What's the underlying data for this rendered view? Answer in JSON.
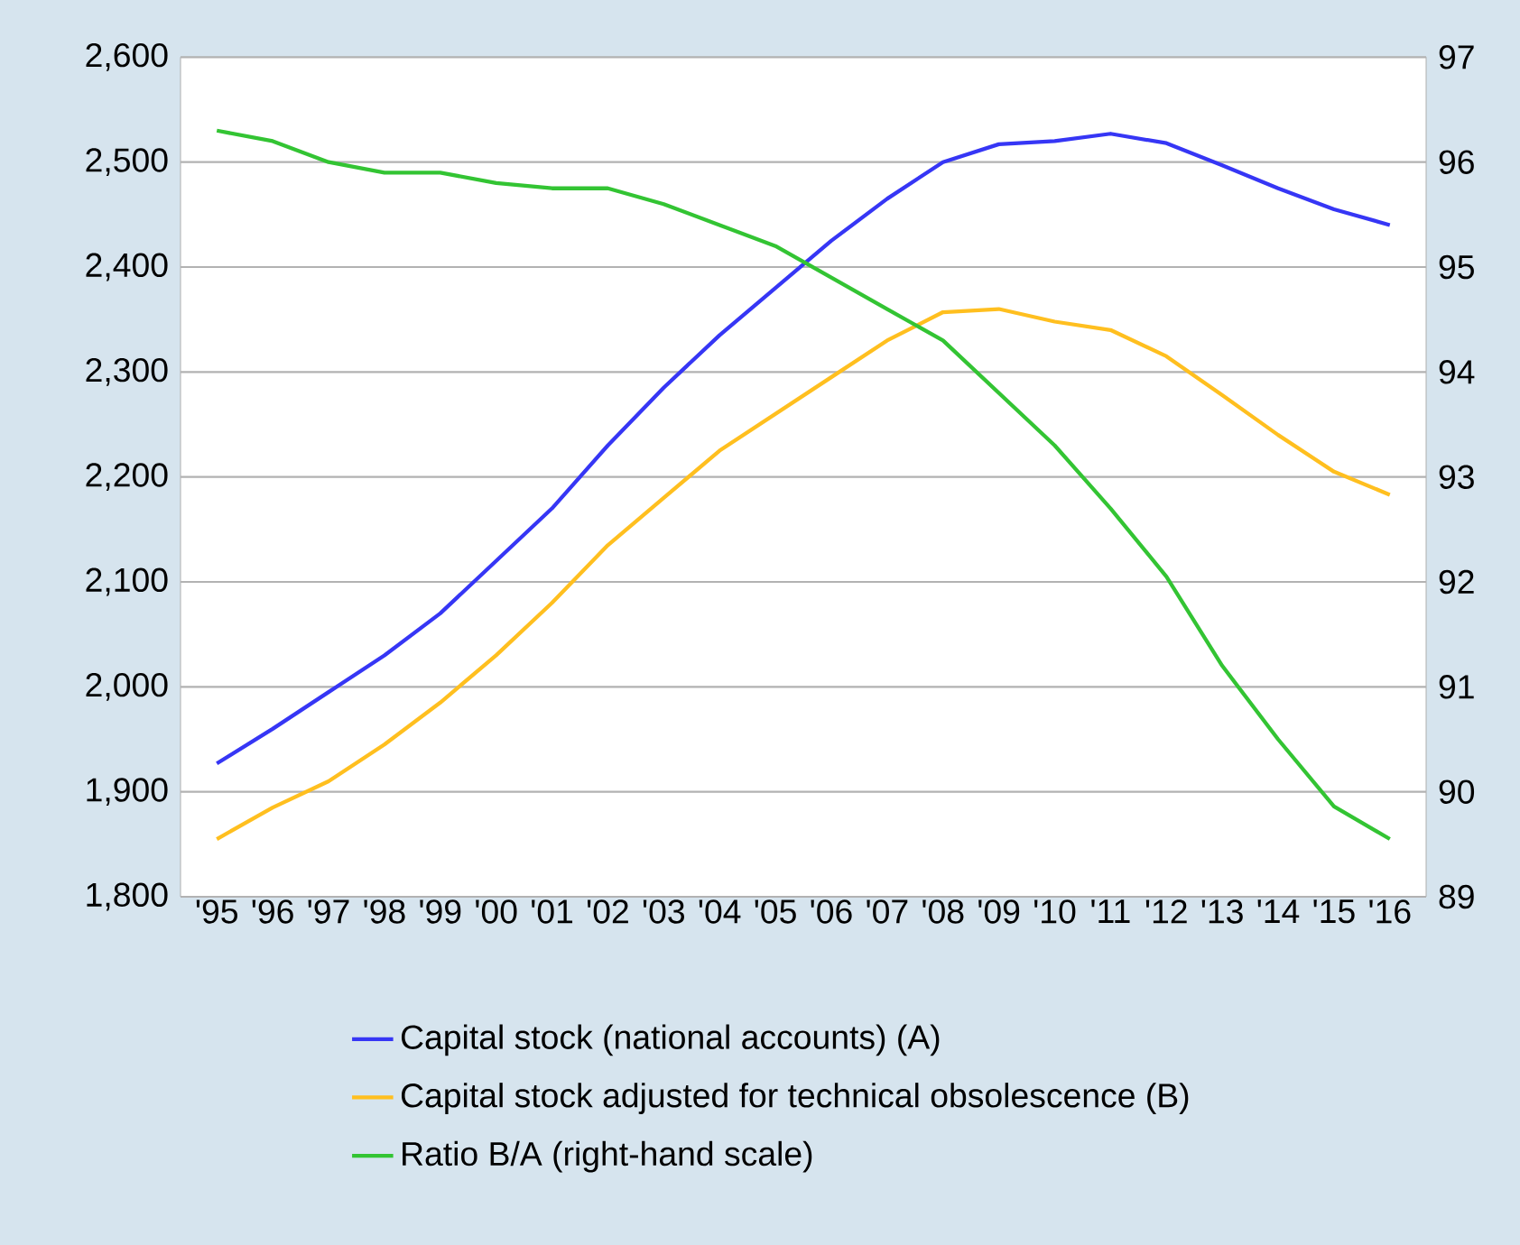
{
  "chart_data": {
    "type": "line",
    "categories": [
      "'95",
      "'96",
      "'97",
      "'98",
      "'99",
      "'00",
      "'01",
      "'02",
      "'03",
      "'04",
      "'05",
      "'06",
      "'07",
      "'08",
      "'09",
      "'10",
      "'11",
      "'12",
      "'13",
      "'14",
      "'15",
      "'16"
    ],
    "series": [
      {
        "name": "Capital stock (national accounts) (A)",
        "color": "#3636f5",
        "values": [
          1927,
          1960,
          1995,
          2030,
          2070,
          2120,
          2170,
          2230,
          2285,
          2335,
          2380,
          2425,
          2465,
          2500,
          2517,
          2520,
          2527,
          2518,
          2497,
          2475,
          2455,
          2440
        ]
      },
      {
        "name": "Capital stock adjusted for technical obsolescence (B)",
        "color": "#ffbf1f",
        "values": [
          1855,
          1885,
          1910,
          1945,
          1985,
          2030,
          2080,
          2135,
          2180,
          2225,
          2260,
          2295,
          2330,
          2357,
          2360,
          2348,
          2340,
          2315,
          2278,
          2240,
          2205,
          2183
        ]
      },
      {
        "name": "Ratio B/A (right-hand scale)",
        "color": "#33c433",
        "axis": "y2",
        "values": [
          96.3,
          96.2,
          96.0,
          95.9,
          95.9,
          95.8,
          95.75,
          95.75,
          95.6,
          95.4,
          95.2,
          94.9,
          94.6,
          94.3,
          93.8,
          93.3,
          92.7,
          92.05,
          91.2,
          90.5,
          89.86,
          89.55
        ]
      }
    ],
    "ylim": [
      1800,
      2600
    ],
    "yticks": [
      {
        "value": 1800,
        "label": "1,800"
      },
      {
        "value": 1900,
        "label": "1,900"
      },
      {
        "value": 2000,
        "label": "2,000"
      },
      {
        "value": 2100,
        "label": "2,100"
      },
      {
        "value": 2200,
        "label": "2,200"
      },
      {
        "value": 2300,
        "label": "2,300"
      },
      {
        "value": 2400,
        "label": "2,400"
      },
      {
        "value": 2500,
        "label": "2,500"
      },
      {
        "value": 2600,
        "label": "2,600"
      }
    ],
    "y2lim": [
      89,
      97
    ],
    "y2ticks": [
      89,
      90,
      91,
      92,
      93,
      94,
      95,
      96,
      97
    ],
    "grid": "y",
    "legend": "bottom"
  }
}
